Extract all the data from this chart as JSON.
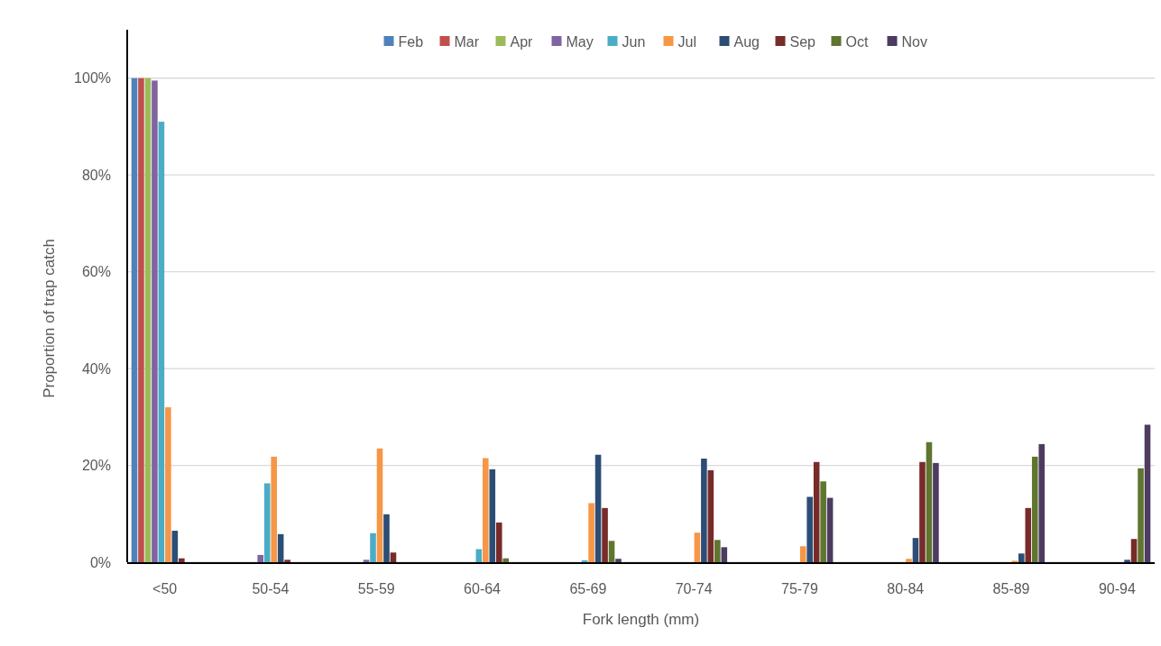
{
  "chart_data": {
    "type": "bar",
    "xlabel": "Fork length (mm)",
    "ylabel": "Proportion of trap catch",
    "categories": [
      "<50",
      "50-54",
      "55-59",
      "60-64",
      "65-69",
      "70-74",
      "75-79",
      "80-84",
      "85-89",
      "90-94"
    ],
    "series": [
      {
        "name": "Feb",
        "color": "#4f81bd",
        "values": [
          100,
          0,
          0,
          0,
          0,
          0,
          0,
          0,
          0,
          0
        ]
      },
      {
        "name": "Mar",
        "color": "#c0504d",
        "values": [
          100,
          0,
          0,
          0,
          0,
          0,
          0,
          0,
          0,
          0
        ]
      },
      {
        "name": "Apr",
        "color": "#9bbb59",
        "values": [
          100,
          0,
          0,
          0,
          0,
          0,
          0,
          0,
          0,
          0
        ]
      },
      {
        "name": "May",
        "color": "#8064a2",
        "values": [
          99.5,
          1.5,
          0.5,
          0,
          0,
          0,
          0,
          0,
          0,
          0
        ]
      },
      {
        "name": "Jun",
        "color": "#4bacc6",
        "values": [
          91,
          16.3,
          6,
          2.7,
          0.4,
          0,
          0,
          0,
          0,
          0
        ]
      },
      {
        "name": "Jul",
        "color": "#f79646",
        "values": [
          32,
          21.8,
          23.5,
          21.5,
          12.2,
          6.1,
          3.3,
          0.7,
          0.3,
          0
        ]
      },
      {
        "name": "Aug",
        "color": "#2c4d75",
        "values": [
          6.5,
          5.8,
          9.9,
          19.2,
          22.2,
          21.4,
          13.5,
          5,
          1.8,
          0.5
        ]
      },
      {
        "name": "Sep",
        "color": "#772c2a",
        "values": [
          0.8,
          0.5,
          2,
          8.2,
          11.2,
          19,
          20.7,
          20.7,
          11.2,
          4.8
        ]
      },
      {
        "name": "Oct",
        "color": "#5f7530",
        "values": [
          0,
          0,
          0,
          0.8,
          4.4,
          4.6,
          16.7,
          24.8,
          21.8,
          19.4
        ]
      },
      {
        "name": "Nov",
        "color": "#4d3b62",
        "values": [
          0,
          0,
          0,
          0,
          0.7,
          3.1,
          13.3,
          20.5,
          24.4,
          28.4
        ]
      }
    ],
    "ylim": [
      0,
      110
    ],
    "yticks": [
      {
        "value": 0,
        "label": "0%"
      },
      {
        "value": 20,
        "label": "20%"
      },
      {
        "value": 40,
        "label": "40%"
      },
      {
        "value": 60,
        "label": "60%"
      },
      {
        "value": 80,
        "label": "80%"
      },
      {
        "value": 100,
        "label": "100%"
      }
    ],
    "grid": "y",
    "legend": "top"
  }
}
